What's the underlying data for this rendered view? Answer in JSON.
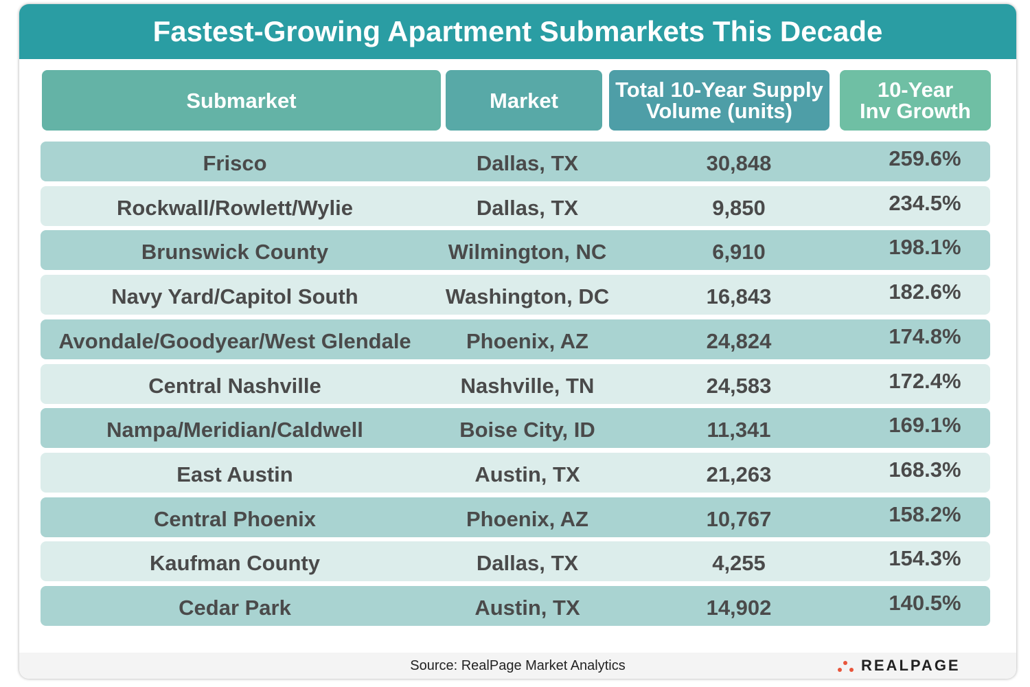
{
  "title": "Fastest-Growing Apartment Submarkets This Decade",
  "table": {
    "headers": [
      [
        "Submarket"
      ],
      [
        "Market"
      ],
      [
        "Total 10-Year Supply",
        "Volume (units)"
      ],
      [
        "10-Year",
        "Inv Growth"
      ]
    ],
    "rows": [
      [
        "Frisco",
        "Dallas, TX",
        "30,848",
        "259.6%"
      ],
      [
        "Rockwall/Rowlett/Wylie",
        "Dallas, TX",
        "9,850",
        "234.5%"
      ],
      [
        "Brunswick County",
        "Wilmington, NC",
        "6,910",
        "198.1%"
      ],
      [
        "Navy Yard/Capitol South",
        "Washington, DC",
        "16,843",
        "182.6%"
      ],
      [
        "Avondale/Goodyear/West Glendale",
        "Phoenix, AZ",
        "24,824",
        "174.8%"
      ],
      [
        "Central Nashville",
        "Nashville, TN",
        "24,583",
        "172.4%"
      ],
      [
        "Nampa/Meridian/Caldwell",
        "Boise City, ID",
        "11,341",
        "169.1%"
      ],
      [
        "East Austin",
        "Austin, TX",
        "21,263",
        "168.3%"
      ],
      [
        "Central Phoenix",
        "Phoenix, AZ",
        "10,767",
        "158.2%"
      ],
      [
        "Kaufman County",
        "Dallas, TX",
        "4,255",
        "154.3%"
      ],
      [
        "Cedar Park",
        "Austin, TX",
        "14,902",
        "140.5%"
      ]
    ]
  },
  "source": "Source: RealPage Market Analytics",
  "logo": "REALPAGE"
}
